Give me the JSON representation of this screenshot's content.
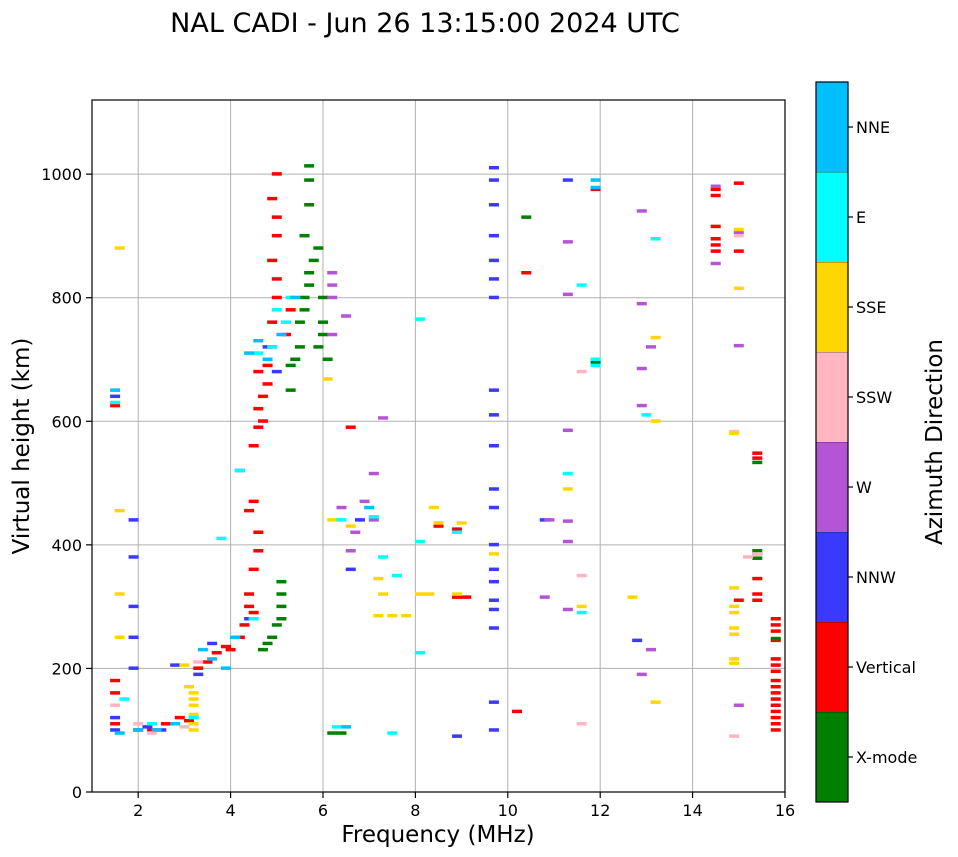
{
  "chart_data": {
    "type": "scatter",
    "title": "NAL CADI - Jun 26 13:15:00 2024 UTC",
    "xlabel": "Frequency (MHz)",
    "ylabel": "Virtual height (km)",
    "xlim": [
      1,
      16
    ],
    "ylim": [
      0,
      1120
    ],
    "xticks": [
      2,
      4,
      6,
      8,
      10,
      12,
      14,
      16
    ],
    "yticks": [
      0,
      200,
      400,
      600,
      800,
      1000
    ],
    "grid": true,
    "colorbar": {
      "label": "Azimuth Direction",
      "categories": [
        {
          "name": "X-mode",
          "color": "#008000"
        },
        {
          "name": "Vertical",
          "color": "#ff0000"
        },
        {
          "name": "NNW",
          "color": "#3a3aff"
        },
        {
          "name": "W",
          "color": "#b455d6"
        },
        {
          "name": "SSW",
          "color": "#ffb6c1"
        },
        {
          "name": "SSE",
          "color": "#ffd700"
        },
        {
          "name": "E",
          "color": "#00ffff"
        },
        {
          "name": "NNE",
          "color": "#00bfff"
        }
      ]
    },
    "series": [
      {
        "name": "Vertical",
        "points": [
          [
            1.5,
            110
          ],
          [
            1.5,
            160
          ],
          [
            1.5,
            180
          ],
          [
            1.5,
            625
          ],
          [
            2.3,
            100
          ],
          [
            2.6,
            110
          ],
          [
            2.9,
            120
          ],
          [
            3.1,
            115
          ],
          [
            3.3,
            200
          ],
          [
            3.5,
            210
          ],
          [
            3.7,
            225
          ],
          [
            3.9,
            235
          ],
          [
            4.0,
            230
          ],
          [
            4.2,
            250
          ],
          [
            4.3,
            270
          ],
          [
            4.4,
            300
          ],
          [
            4.4,
            320
          ],
          [
            4.5,
            290
          ],
          [
            4.5,
            360
          ],
          [
            4.6,
            390
          ],
          [
            4.6,
            420
          ],
          [
            4.4,
            455
          ],
          [
            4.5,
            470
          ],
          [
            4.5,
            560
          ],
          [
            4.6,
            590
          ],
          [
            4.6,
            620
          ],
          [
            4.7,
            640
          ],
          [
            4.8,
            660
          ],
          [
            4.8,
            690
          ],
          [
            4.9,
            720
          ],
          [
            4.9,
            760
          ],
          [
            5.0,
            800
          ],
          [
            5.0,
            830
          ],
          [
            4.9,
            860
          ],
          [
            5.0,
            900
          ],
          [
            5.0,
            930
          ],
          [
            4.9,
            960
          ],
          [
            5.0,
            1000
          ],
          [
            4.7,
            600
          ],
          [
            4.6,
            680
          ],
          [
            5.3,
            780
          ],
          [
            5.2,
            740
          ],
          [
            6.6,
            590
          ],
          [
            8.5,
            430
          ],
          [
            8.9,
            425
          ],
          [
            8.9,
            315
          ],
          [
            9.1,
            315
          ],
          [
            10.2,
            130
          ],
          [
            10.4,
            840
          ],
          [
            11.9,
            975
          ],
          [
            14.5,
            975
          ],
          [
            14.5,
            965
          ],
          [
            14.5,
            915
          ],
          [
            14.5,
            895
          ],
          [
            14.5,
            885
          ],
          [
            14.5,
            875
          ],
          [
            15.0,
            985
          ],
          [
            15.0,
            875
          ],
          [
            15.0,
            310
          ],
          [
            15.4,
            548
          ],
          [
            15.4,
            540
          ],
          [
            15.4,
            345
          ],
          [
            15.4,
            320
          ],
          [
            15.4,
            310
          ],
          [
            15.8,
            280
          ],
          [
            15.8,
            270
          ],
          [
            15.8,
            260
          ],
          [
            15.8,
            245
          ],
          [
            15.8,
            215
          ],
          [
            15.8,
            205
          ],
          [
            15.8,
            195
          ],
          [
            15.8,
            180
          ],
          [
            15.8,
            170
          ],
          [
            15.8,
            160
          ],
          [
            15.8,
            150
          ],
          [
            15.8,
            140
          ],
          [
            15.8,
            130
          ],
          [
            15.8,
            120
          ],
          [
            15.8,
            110
          ],
          [
            15.8,
            100
          ]
        ]
      },
      {
        "name": "X-mode",
        "points": [
          [
            4.7,
            230
          ],
          [
            4.8,
            240
          ],
          [
            4.9,
            250
          ],
          [
            5.0,
            270
          ],
          [
            5.1,
            280
          ],
          [
            5.1,
            300
          ],
          [
            5.1,
            320
          ],
          [
            5.1,
            340
          ],
          [
            5.3,
            650
          ],
          [
            5.3,
            690
          ],
          [
            5.4,
            700
          ],
          [
            5.5,
            720
          ],
          [
            5.5,
            760
          ],
          [
            5.6,
            780
          ],
          [
            5.6,
            800
          ],
          [
            5.7,
            820
          ],
          [
            5.7,
            840
          ],
          [
            5.8,
            860
          ],
          [
            5.9,
            880
          ],
          [
            5.6,
            900
          ],
          [
            5.7,
            950
          ],
          [
            5.7,
            990
          ],
          [
            5.7,
            1013
          ],
          [
            5.9,
            720
          ],
          [
            6.0,
            740
          ],
          [
            6.0,
            760
          ],
          [
            6.0,
            800
          ],
          [
            6.1,
            700
          ],
          [
            6.2,
            95
          ],
          [
            6.4,
            95
          ],
          [
            10.4,
            930
          ],
          [
            11.9,
            695
          ],
          [
            15.4,
            533
          ],
          [
            15.4,
            390
          ],
          [
            15.4,
            385
          ],
          [
            15.4,
            378
          ],
          [
            15.8,
            248
          ]
        ]
      },
      {
        "name": "NNW",
        "points": [
          [
            1.5,
            640
          ],
          [
            1.5,
            120
          ],
          [
            1.5,
            100
          ],
          [
            2.0,
            100
          ],
          [
            1.9,
            440
          ],
          [
            1.9,
            380
          ],
          [
            1.9,
            300
          ],
          [
            1.9,
            250
          ],
          [
            1.9,
            200
          ],
          [
            2.2,
            105
          ],
          [
            2.5,
            100
          ],
          [
            2.8,
            205
          ],
          [
            3.3,
            190
          ],
          [
            3.6,
            240
          ],
          [
            4.2,
            520
          ],
          [
            4.4,
            280
          ],
          [
            4.8,
            720
          ],
          [
            5.0,
            680
          ],
          [
            6.8,
            440
          ],
          [
            6.6,
            360
          ],
          [
            9.7,
            1010
          ],
          [
            9.7,
            990
          ],
          [
            9.7,
            950
          ],
          [
            9.7,
            900
          ],
          [
            9.7,
            860
          ],
          [
            9.7,
            830
          ],
          [
            9.7,
            800
          ],
          [
            9.7,
            650
          ],
          [
            9.7,
            610
          ],
          [
            9.7,
            560
          ],
          [
            9.7,
            490
          ],
          [
            9.7,
            460
          ],
          [
            9.7,
            400
          ],
          [
            9.7,
            360
          ],
          [
            9.7,
            340
          ],
          [
            9.7,
            310
          ],
          [
            9.7,
            295
          ],
          [
            9.7,
            265
          ],
          [
            9.7,
            145
          ],
          [
            9.7,
            100
          ],
          [
            8.9,
            90
          ],
          [
            10.8,
            440
          ],
          [
            11.3,
            990
          ],
          [
            12.8,
            245
          ]
        ]
      },
      {
        "name": "W",
        "points": [
          [
            6.2,
            740
          ],
          [
            6.2,
            800
          ],
          [
            6.2,
            820
          ],
          [
            6.2,
            840
          ],
          [
            6.5,
            770
          ],
          [
            6.4,
            460
          ],
          [
            6.6,
            390
          ],
          [
            6.7,
            420
          ],
          [
            6.9,
            470
          ],
          [
            7.1,
            440
          ],
          [
            7.3,
            605
          ],
          [
            7.1,
            515
          ],
          [
            10.8,
            315
          ],
          [
            10.9,
            440
          ],
          [
            11.3,
            890
          ],
          [
            11.3,
            805
          ],
          [
            11.3,
            585
          ],
          [
            11.3,
            438
          ],
          [
            11.3,
            405
          ],
          [
            11.3,
            295
          ],
          [
            12.9,
            940
          ],
          [
            12.9,
            790
          ],
          [
            12.9,
            685
          ],
          [
            12.9,
            625
          ],
          [
            12.9,
            190
          ],
          [
            13.1,
            720
          ],
          [
            13.1,
            230
          ],
          [
            14.5,
            980
          ],
          [
            14.5,
            855
          ],
          [
            15.0,
            722
          ],
          [
            15.0,
            905
          ],
          [
            15.0,
            140
          ]
        ]
      },
      {
        "name": "SSW",
        "points": [
          [
            1.5,
            140
          ],
          [
            2.0,
            110
          ],
          [
            2.3,
            95
          ],
          [
            3.0,
            105
          ],
          [
            3.3,
            210
          ],
          [
            11.6,
            680
          ],
          [
            11.6,
            350
          ],
          [
            11.6,
            110
          ],
          [
            14.9,
            583
          ],
          [
            14.9,
            90
          ],
          [
            15.0,
            900
          ],
          [
            15.2,
            380
          ],
          [
            15.4,
            385
          ]
        ]
      },
      {
        "name": "SSE",
        "points": [
          [
            1.6,
            880
          ],
          [
            1.6,
            455
          ],
          [
            1.6,
            320
          ],
          [
            1.6,
            250
          ],
          [
            3.1,
            170
          ],
          [
            3.2,
            160
          ],
          [
            3.2,
            150
          ],
          [
            3.2,
            140
          ],
          [
            3.2,
            125
          ],
          [
            3.2,
            110
          ],
          [
            3.2,
            100
          ],
          [
            3.0,
            205
          ],
          [
            6.2,
            440
          ],
          [
            6.1,
            668
          ],
          [
            6.6,
            430
          ],
          [
            7.2,
            345
          ],
          [
            7.2,
            285
          ],
          [
            7.3,
            320
          ],
          [
            7.5,
            285
          ],
          [
            7.8,
            285
          ],
          [
            8.1,
            320
          ],
          [
            8.3,
            320
          ],
          [
            8.4,
            460
          ],
          [
            8.5,
            435
          ],
          [
            8.9,
            320
          ],
          [
            9.0,
            435
          ],
          [
            9.7,
            385
          ],
          [
            11.3,
            490
          ],
          [
            11.6,
            300
          ],
          [
            12.7,
            315
          ],
          [
            13.2,
            735
          ],
          [
            13.2,
            600
          ],
          [
            13.2,
            145
          ],
          [
            15.0,
            910
          ],
          [
            15.0,
            815
          ],
          [
            14.9,
            580
          ],
          [
            14.9,
            330
          ],
          [
            14.9,
            300
          ],
          [
            14.9,
            290
          ],
          [
            14.9,
            265
          ],
          [
            14.9,
            255
          ],
          [
            14.9,
            215
          ],
          [
            14.9,
            208
          ]
        ]
      },
      {
        "name": "E",
        "points": [
          [
            1.5,
            630
          ],
          [
            1.7,
            150
          ],
          [
            2.3,
            110
          ],
          [
            3.2,
            120
          ],
          [
            3.8,
            410
          ],
          [
            4.2,
            520
          ],
          [
            4.5,
            280
          ],
          [
            4.6,
            710
          ],
          [
            4.9,
            720
          ],
          [
            5.0,
            780
          ],
          [
            5.2,
            760
          ],
          [
            5.3,
            800
          ],
          [
            6.3,
            105
          ],
          [
            6.4,
            440
          ],
          [
            7.1,
            445
          ],
          [
            7.3,
            380
          ],
          [
            7.5,
            95
          ],
          [
            7.6,
            350
          ],
          [
            8.1,
            765
          ],
          [
            8.1,
            225
          ],
          [
            8.1,
            405
          ],
          [
            8.9,
            420
          ],
          [
            11.3,
            515
          ],
          [
            11.6,
            820
          ],
          [
            11.6,
            290
          ],
          [
            11.9,
            700
          ],
          [
            11.9,
            690
          ],
          [
            13.2,
            895
          ],
          [
            13.0,
            610
          ]
        ]
      },
      {
        "name": "NNE",
        "points": [
          [
            1.5,
            650
          ],
          [
            1.6,
            95
          ],
          [
            2.0,
            100
          ],
          [
            2.4,
            100
          ],
          [
            2.8,
            110
          ],
          [
            3.4,
            230
          ],
          [
            3.6,
            215
          ],
          [
            3.9,
            200
          ],
          [
            4.1,
            250
          ],
          [
            4.4,
            710
          ],
          [
            4.6,
            730
          ],
          [
            4.8,
            700
          ],
          [
            5.1,
            740
          ],
          [
            5.4,
            800
          ],
          [
            6.5,
            105
          ],
          [
            7.0,
            460
          ],
          [
            11.9,
            990
          ],
          [
            11.9,
            978
          ]
        ]
      }
    ]
  }
}
